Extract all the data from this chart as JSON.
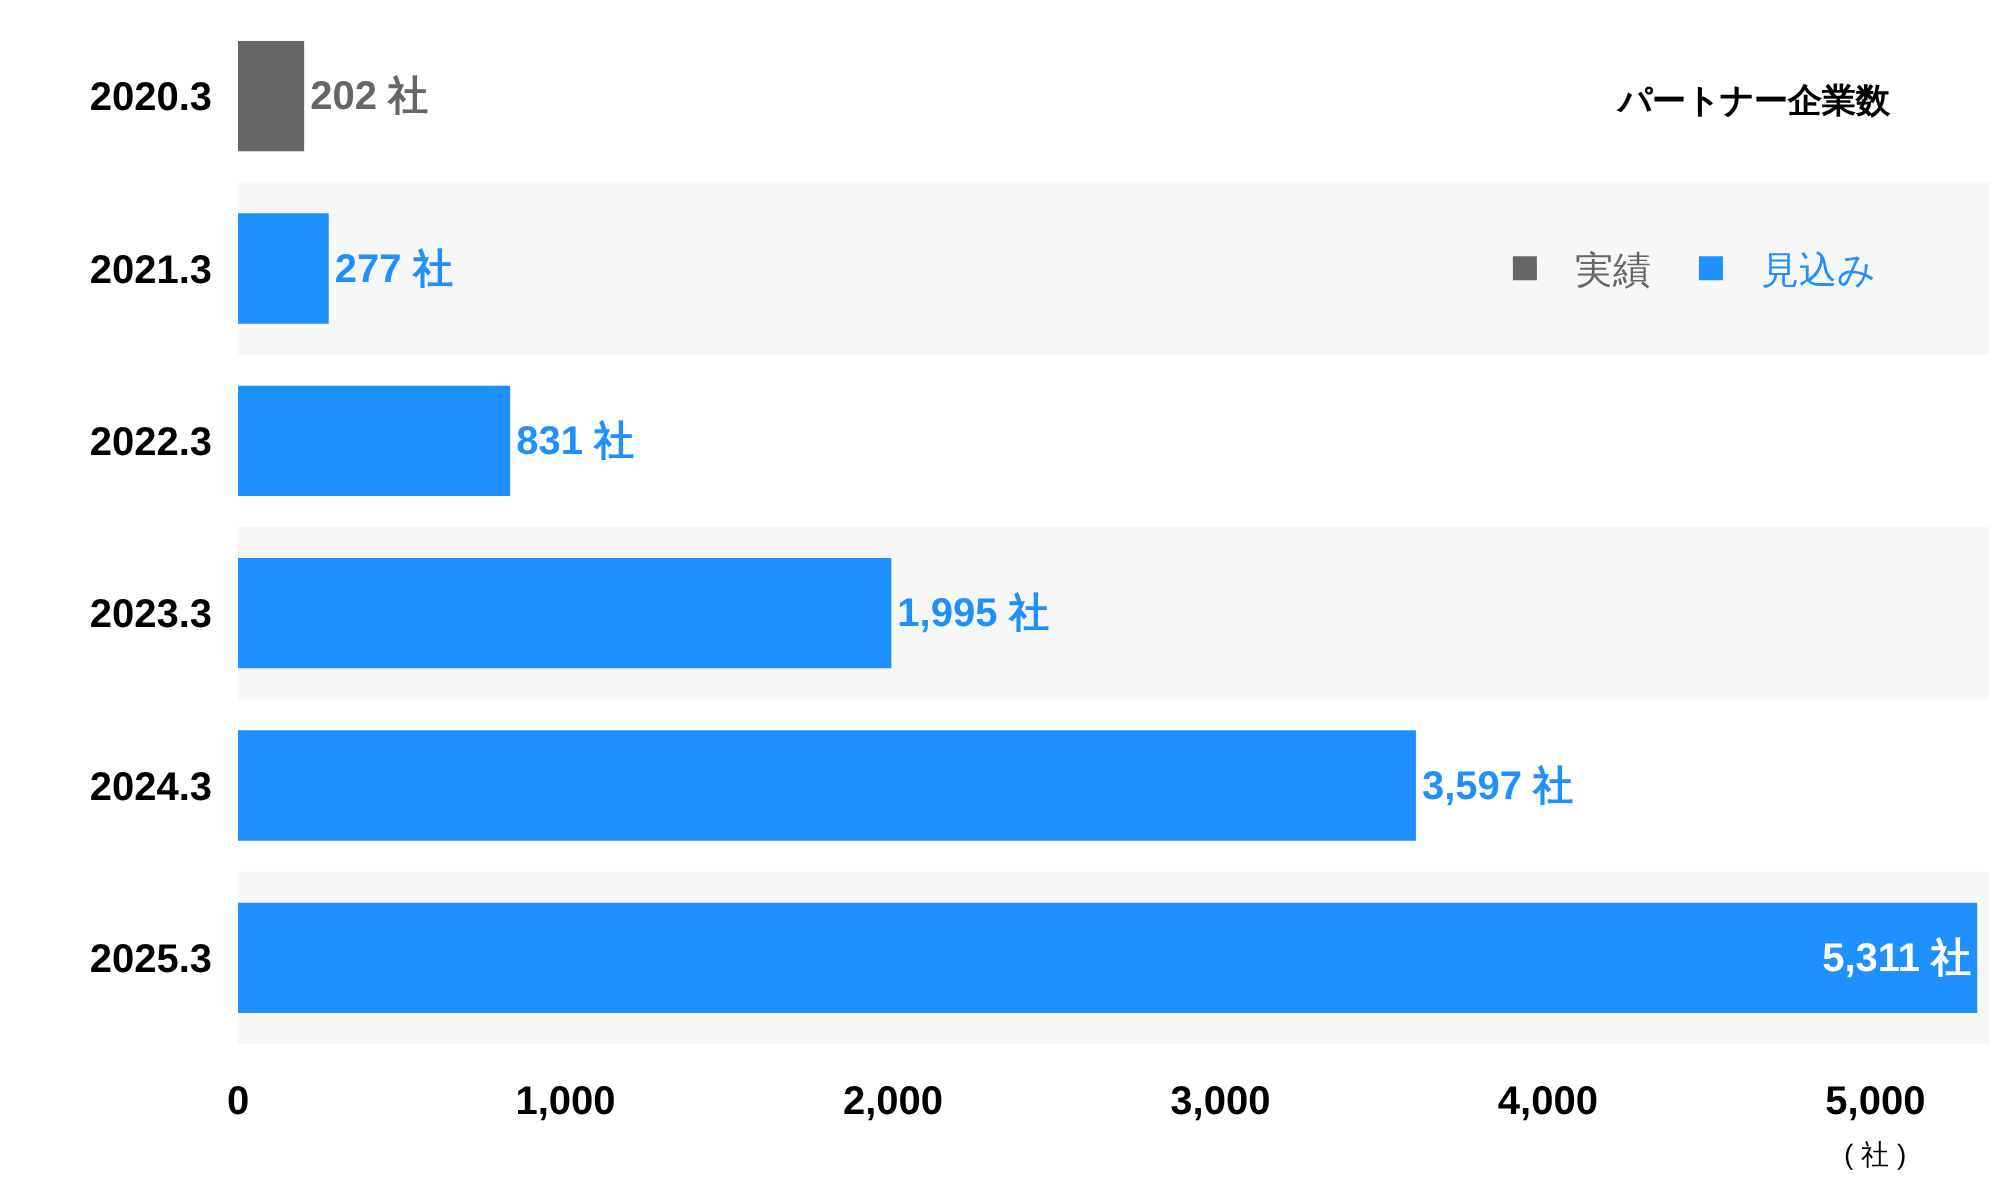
{
  "chart_data": {
    "type": "bar",
    "orientation": "horizontal",
    "title": "パートナー企業数",
    "xlabel": "( 社 )",
    "categories": [
      "2020.3",
      "2021.3",
      "2022.3",
      "2023.3",
      "2024.3",
      "2025.3"
    ],
    "series": [
      {
        "name": "実績",
        "color": "#666666",
        "values": [
          202,
          null,
          null,
          null,
          null,
          null
        ],
        "value_labels": [
          "202 社",
          null,
          null,
          null,
          null,
          null
        ]
      },
      {
        "name": "見込み",
        "color": "#1e90ff",
        "values": [
          null,
          277,
          831,
          1995,
          3597,
          5311
        ],
        "value_labels": [
          null,
          "277 社",
          "831 社",
          "1,995 社",
          "3,597 社",
          "5,311 社"
        ]
      }
    ],
    "xlim": [
      0,
      5350
    ],
    "xticks": [
      0,
      {
        "value": 1000,
        "label": "1,000"
      },
      {
        "value": 2000,
        "label": "2,000"
      },
      {
        "value": 3000,
        "label": "3,000"
      },
      {
        "value": 4000,
        "label": "4,000"
      },
      {
        "value": 5000,
        "label": "5,000"
      }
    ],
    "legend": "top right",
    "bands": [
      {
        "axis": "y",
        "from": "2021.3",
        "to": "2021.3",
        "color": "#f7f7f7"
      },
      {
        "axis": "y",
        "from": "2023.3",
        "to": "2023.3",
        "color": "#f7f7f7"
      },
      {
        "axis": "y",
        "from": "2025.3",
        "to": "2025.3",
        "color": "#f7f7f7"
      }
    ]
  }
}
